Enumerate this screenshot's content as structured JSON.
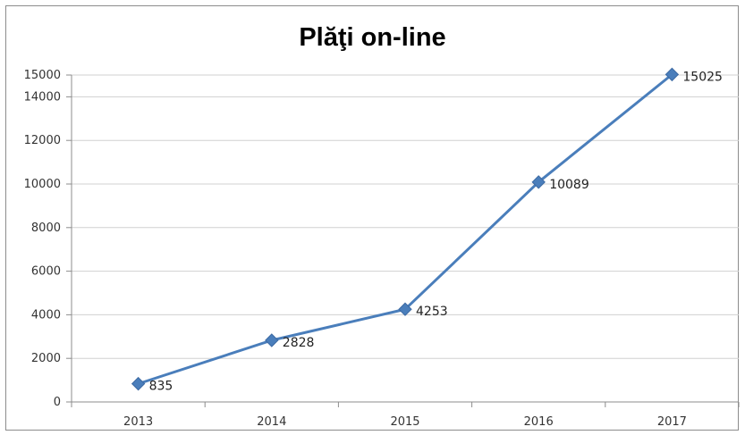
{
  "chart_data": {
    "type": "line",
    "title": "Plăţi on-line",
    "xlabel": "",
    "ylabel": "",
    "categories": [
      "2013",
      "2014",
      "2015",
      "2016",
      "2017"
    ],
    "series": [
      {
        "values": [
          835,
          2828,
          4253,
          10089,
          15025
        ],
        "color": "#4a7ebb",
        "marker": "diamond"
      }
    ],
    "data_labels": [
      "835",
      "2828",
      "4253",
      "10089",
      "15025"
    ],
    "ylim": [
      0,
      15000
    ],
    "yticks": [
      0,
      2000,
      4000,
      6000,
      8000,
      10000,
      12000,
      14000,
      15000
    ],
    "ytick_labels": [
      "0",
      "2000",
      "4000",
      "6000",
      "8000",
      "10000",
      "12000",
      "14000",
      "15000"
    ],
    "grid": true,
    "legend": "none"
  }
}
